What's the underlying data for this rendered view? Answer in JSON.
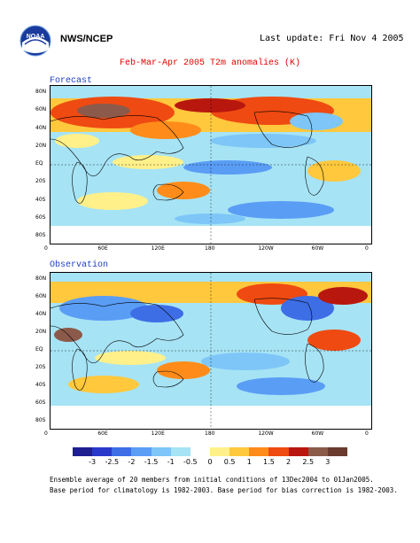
{
  "header": {
    "org": "NWS/NCEP",
    "last_update": "Last update: Fri Nov 4 2005"
  },
  "title": "Feb-Mar-Apr 2005 T2m anomalies (K)",
  "panels": {
    "forecast": "Forecast",
    "observation": "Observation"
  },
  "lat_labels": [
    "80N",
    "60N",
    "40N",
    "20N",
    "EQ",
    "20S",
    "40S",
    "60S",
    "80S"
  ],
  "lon_labels": [
    "0",
    "60E",
    "120E",
    "180",
    "120W",
    "60W",
    "0"
  ],
  "colorbar": {
    "labels": [
      "-3",
      "-2.5",
      "-2",
      "-1.5",
      "-1",
      "-0.5",
      "0",
      "0.5",
      "1",
      "1.5",
      "2",
      "2.5",
      "3"
    ],
    "colors": [
      "#1f1f8f",
      "#2a39c9",
      "#3d6ee6",
      "#5a9df5",
      "#7dc6f7",
      "#a6e3f5",
      "#ffffff",
      "#fff08a",
      "#ffc83d",
      "#ff8c1a",
      "#ef4a12",
      "#b8170e",
      "#8c5a4a",
      "#6b3a2e"
    ]
  },
  "footnote": [
    "Ensemble average of 20 members from initial conditions of 13Dec2004 to 01Jan2005.",
    "Base period for climatology is 1982-2003. Base period for bias correction is 1982-2003."
  ]
}
